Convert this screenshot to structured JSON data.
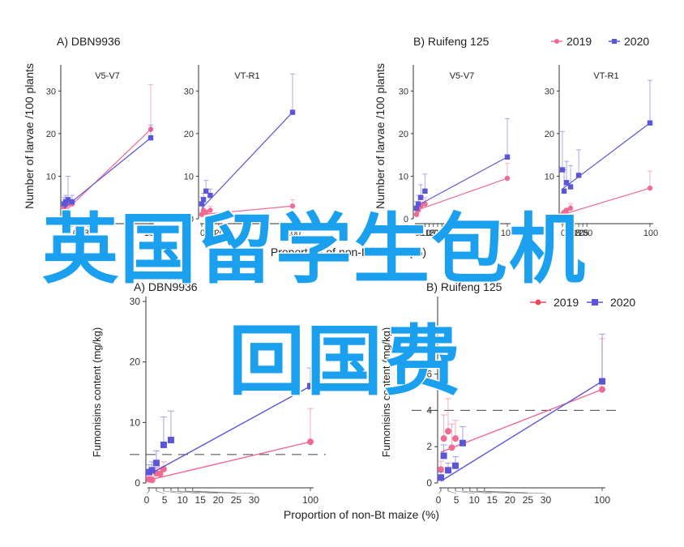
{
  "colors": {
    "s2019": "#f06a93",
    "s2020": "#5b55d9",
    "axis": "#333333",
    "dash": "#444444",
    "watermark": "#1aa0ee"
  },
  "legend_top": {
    "items": [
      "2019",
      "2020"
    ]
  },
  "legend_bottom": {
    "items": [
      "2019",
      "2020"
    ]
  },
  "top_ylabel": "Number of larvae /100 plants",
  "top_xlabel": "Proportion of non-Bt maize (%)",
  "bottom_xlabel": "Proportion of non-Bt maize (%)",
  "watermark": {
    "line1": "英国留学生包机",
    "line2": "回国费"
  },
  "chart_data": [
    {
      "type": "scatter",
      "group": "A) DBN9936",
      "title": "V5-V7",
      "ylim": [
        0,
        35
      ],
      "yticks": [
        0,
        10,
        20,
        30
      ],
      "xticks": [
        0,
        5,
        10,
        20,
        30,
        100
      ],
      "xticklabels": [
        "0",
        "5",
        "10",
        "20",
        "30",
        "100"
      ],
      "series": [
        {
          "name": "2019",
          "x": [
            0,
            2,
            5,
            10,
            100
          ],
          "y": [
            2.5,
            3.0,
            3.5,
            3.5,
            21
          ],
          "err": [
            1,
            1,
            1,
            1,
            10.5
          ],
          "fit": [
            1.5,
            21
          ]
        },
        {
          "name": "2020",
          "x": [
            0,
            2,
            5,
            10,
            100
          ],
          "y": [
            3.5,
            4.0,
            4.5,
            4.0,
            19
          ],
          "err": [
            1.5,
            1.5,
            5.5,
            1.5,
            3
          ],
          "fit": [
            2.5,
            19
          ]
        }
      ]
    },
    {
      "type": "scatter",
      "group": "A) DBN9936",
      "title": "VT-R1",
      "ylim": [
        0,
        35
      ],
      "yticks": [
        0,
        10,
        20,
        30
      ],
      "xticks": [
        0,
        5,
        10,
        20,
        30,
        100
      ],
      "xticklabels": [
        "0",
        "5",
        "10",
        "20",
        "30",
        "100"
      ],
      "series": [
        {
          "name": "2019",
          "x": [
            0,
            2,
            5,
            10,
            100
          ],
          "y": [
            1.0,
            2.0,
            1.5,
            2.0,
            3.0
          ],
          "err": [
            0.5,
            1,
            0.5,
            1,
            1.5
          ],
          "fit": [
            1.0,
            3.0
          ]
        },
        {
          "name": "2020",
          "x": [
            0,
            2,
            5,
            10,
            100
          ],
          "y": [
            3.5,
            4.5,
            6.5,
            5.5,
            25
          ],
          "err": [
            1.5,
            1.5,
            2.5,
            1.5,
            9
          ],
          "fit": [
            2.5,
            25
          ]
        }
      ]
    },
    {
      "type": "scatter",
      "group": "B) Ruifeng 125",
      "title": "V5-V7",
      "ylim": [
        0,
        35
      ],
      "yticks": [
        0,
        10,
        20,
        30
      ],
      "xticks": [
        0,
        5,
        10,
        15,
        20,
        25,
        30,
        100
      ],
      "xticklabels": [
        "0",
        "5",
        "10",
        "15",
        "20",
        "25",
        "30",
        "100"
      ],
      "series": [
        {
          "name": "2019",
          "x": [
            0,
            1,
            2,
            5,
            10,
            100
          ],
          "y": [
            1.0,
            2.0,
            2.0,
            3.0,
            3.5,
            9.5
          ],
          "err": [
            0.5,
            1,
            1,
            1,
            1.5,
            3.5
          ],
          "fit": [
            2.0,
            9.5
          ]
        },
        {
          "name": "2020",
          "x": [
            0,
            2,
            5,
            10,
            100
          ],
          "y": [
            2.5,
            3.5,
            5.0,
            6.5,
            14.5
          ],
          "err": [
            1.5,
            2,
            3,
            4,
            9
          ],
          "fit": [
            3.0,
            14.5
          ]
        }
      ]
    },
    {
      "type": "scatter",
      "group": "B) Ruifeng 125",
      "title": "VT-R1",
      "ylim": [
        0,
        35
      ],
      "yticks": [
        0,
        10,
        20,
        30
      ],
      "xticks": [
        0,
        5,
        10,
        15,
        20,
        25,
        30,
        100
      ],
      "xticklabels": [
        "0",
        "5",
        "10",
        "15",
        "20",
        "25",
        "30",
        "100"
      ],
      "series": [
        {
          "name": "2019",
          "x": [
            0,
            2,
            5,
            10,
            100
          ],
          "y": [
            1.0,
            1.5,
            2.0,
            2.5,
            7.2
          ],
          "err": [
            0.5,
            0.5,
            0.5,
            1,
            4
          ],
          "fit": [
            1.0,
            7.2
          ]
        },
        {
          "name": "2020",
          "x": [
            0,
            2,
            5,
            10,
            20,
            100
          ],
          "y": [
            11.5,
            6.5,
            8.5,
            7.5,
            10.2,
            22.5
          ],
          "err": [
            9,
            5,
            5,
            5,
            6,
            10
          ],
          "fit": [
            7.0,
            22.5
          ]
        }
      ]
    },
    {
      "type": "scatter",
      "group": "A) DBN9936",
      "ylabel": "Fumonisins content (mg/kg)",
      "ylim": [
        0,
        30
      ],
      "yticks": [
        0,
        10,
        20,
        30
      ],
      "xticks": [
        0,
        5,
        10,
        15,
        20,
        25,
        30,
        100
      ],
      "xticklabels": [
        "0",
        "5",
        "10",
        "15",
        "20",
        "25",
        "30",
        "100"
      ],
      "threshold": 4.7,
      "series": [
        {
          "name": "2019",
          "x": [
            0,
            2,
            5,
            7.5,
            10,
            100
          ],
          "y": [
            0.6,
            0.5,
            1.6,
            1.5,
            2.3,
            6.8
          ],
          "err": [
            0.5,
            0.5,
            1,
            1,
            1.2,
            5.5
          ],
          "fit": [
            0.5,
            6.8
          ]
        },
        {
          "name": "2020",
          "x": [
            0,
            2,
            5,
            10,
            15,
            100
          ],
          "y": [
            1.8,
            2.1,
            3.3,
            6.3,
            7.1,
            16
          ],
          "err": [
            1.2,
            1.4,
            2,
            4.6,
            4.8,
            3
          ],
          "fit": [
            1.4,
            16
          ]
        }
      ]
    },
    {
      "type": "scatter",
      "group": "B) Ruifeng 125",
      "ylabel": "Fumonisins content (mg/kg)",
      "ylim": [
        0,
        10
      ],
      "yticks": [
        0,
        2,
        4,
        6
      ],
      "xticks": [
        0,
        5,
        10,
        15,
        20,
        25,
        30,
        100
      ],
      "xticklabels": [
        "0",
        "5",
        "10",
        "15",
        "20",
        "25",
        "30",
        "100"
      ],
      "threshold": 4.0,
      "series": [
        {
          "name": "2019",
          "x": [
            0,
            2,
            5,
            7.5,
            10,
            100
          ],
          "y": [
            0.75,
            2.45,
            2.85,
            1.95,
            2.45,
            5.15
          ],
          "err": [
            0.45,
            1.3,
            1.8,
            1.3,
            1.0,
            2.8
          ],
          "fit": [
            1.7,
            5.15
          ]
        },
        {
          "name": "2020",
          "x": [
            0,
            2,
            5,
            10,
            15,
            100
          ],
          "y": [
            0.3,
            1.5,
            0.7,
            0.95,
            2.2,
            5.6
          ],
          "err": [
            0.3,
            0.6,
            0.4,
            0.5,
            0.9,
            2.6
          ],
          "fit": [
            0.1,
            5.6
          ]
        }
      ]
    }
  ]
}
